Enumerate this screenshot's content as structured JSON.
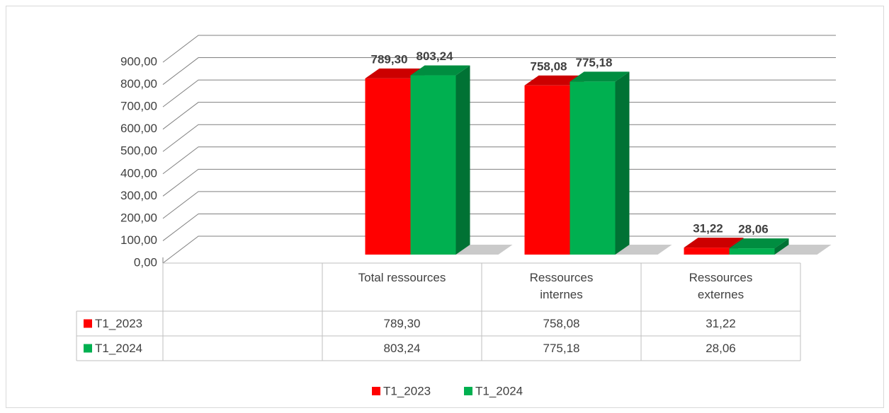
{
  "chart_data": {
    "type": "bar",
    "categories": [
      null,
      "Total ressources",
      "Ressources internes",
      "Ressources externes"
    ],
    "series": [
      {
        "name": "T1_2023",
        "color": "#ff0000",
        "values": [
          null,
          789.3,
          758.08,
          31.22
        ],
        "value_labels": [
          null,
          "789,30",
          "758,08",
          "31,22"
        ]
      },
      {
        "name": "T1_2024",
        "color": "#00b050",
        "values": [
          null,
          803.24,
          775.18,
          28.06
        ],
        "value_labels": [
          null,
          "803,24",
          "775,18",
          "28,06"
        ]
      }
    ],
    "ylim": [
      0,
      900
    ],
    "yticks": [
      {
        "value": 0,
        "label": "0,00"
      },
      {
        "value": 100,
        "label": "100,00"
      },
      {
        "value": 200,
        "label": "200,00"
      },
      {
        "value": 300,
        "label": "300,00"
      },
      {
        "value": 400,
        "label": "400,00"
      },
      {
        "value": 500,
        "label": "500,00"
      },
      {
        "value": 600,
        "label": "600,00"
      },
      {
        "value": 700,
        "label": "700,00"
      },
      {
        "value": 800,
        "label": "800,00"
      },
      {
        "value": 900,
        "label": "900,00"
      }
    ],
    "grid": true,
    "legend": "bottom",
    "data_table": true
  }
}
